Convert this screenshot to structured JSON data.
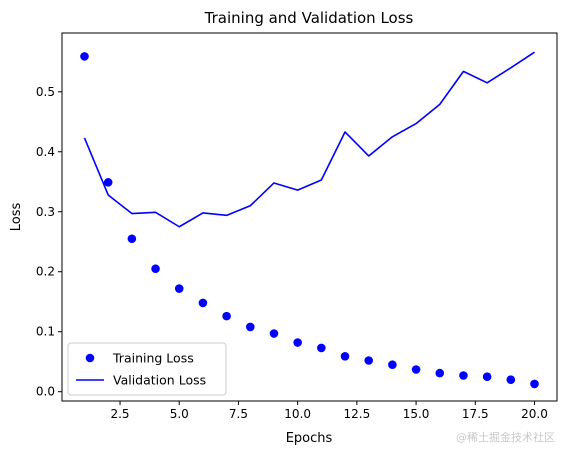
{
  "watermark": "@稀土掘金技术社区",
  "chart_data": {
    "type": "line",
    "title": "Training and Validation Loss",
    "xlabel": "Epochs",
    "ylabel": "Loss",
    "xlim": [
      0.05,
      20.95
    ],
    "ylim": [
      -0.0155,
      0.598
    ],
    "xticks": [
      2.5,
      5.0,
      7.5,
      10.0,
      12.5,
      15.0,
      17.5,
      20.0
    ],
    "xtick_labels": [
      "2.5",
      "5.0",
      "7.5",
      "10.0",
      "12.5",
      "15.0",
      "17.5",
      "20.0"
    ],
    "yticks": [
      0.0,
      0.1,
      0.2,
      0.3,
      0.4,
      0.5
    ],
    "ytick_labels": [
      "0.0",
      "0.1",
      "0.2",
      "0.3",
      "0.4",
      "0.5"
    ],
    "grid": false,
    "legend_position": "lower-left",
    "x": [
      1,
      2,
      3,
      4,
      5,
      6,
      7,
      8,
      9,
      10,
      11,
      12,
      13,
      14,
      15,
      16,
      17,
      18,
      19,
      20
    ],
    "series": [
      {
        "name": "Training Loss",
        "style": "markers",
        "color": "#0000ff",
        "values": [
          0.559,
          0.349,
          0.255,
          0.205,
          0.172,
          0.148,
          0.126,
          0.108,
          0.097,
          0.082,
          0.073,
          0.059,
          0.052,
          0.045,
          0.037,
          0.031,
          0.027,
          0.025,
          0.02,
          0.013
        ]
      },
      {
        "name": "Validation Loss",
        "style": "line",
        "color": "#0000ff",
        "values": [
          0.423,
          0.328,
          0.297,
          0.299,
          0.275,
          0.298,
          0.294,
          0.31,
          0.348,
          0.336,
          0.353,
          0.433,
          0.393,
          0.425,
          0.447,
          0.479,
          0.534,
          0.515,
          0.54,
          0.566
        ]
      }
    ]
  }
}
